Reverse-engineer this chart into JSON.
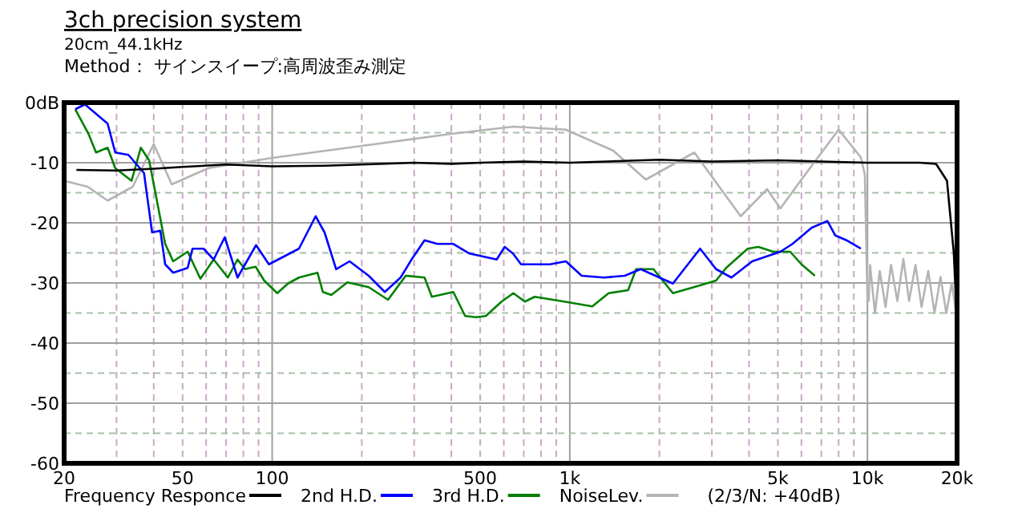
{
  "chart_data": {
    "type": "line",
    "title": "3ch precision system",
    "subtitle": "20cm_44.1kHz",
    "annotations": [
      "Method： サインスイープ:高周波歪み測定",
      "(2/3/N: +40dB)"
    ],
    "log": "x",
    "grid": true,
    "legend": "bottom",
    "marker": "none",
    "line_style": "solid",
    "xlim": [
      20,
      20000
    ],
    "ylim": [
      -60,
      0
    ],
    "xticks": [
      20,
      {
        "value": 30,
        "label": null
      },
      {
        "value": 40,
        "label": null
      },
      50,
      {
        "value": 60,
        "label": null
      },
      {
        "value": 70,
        "label": null
      },
      {
        "value": 80,
        "label": null
      },
      {
        "value": 90,
        "label": null
      },
      100,
      {
        "value": 200,
        "label": null
      },
      {
        "value": 300,
        "label": null
      },
      {
        "value": 400,
        "label": null
      },
      500,
      {
        "value": 600,
        "label": null
      },
      {
        "value": 700,
        "label": null
      },
      {
        "value": 800,
        "label": null
      },
      {
        "value": 900,
        "label": null
      },
      {
        "value": 1000,
        "label": "1k"
      },
      {
        "value": 2000,
        "label": null
      },
      {
        "value": 3000,
        "label": null
      },
      {
        "value": 4000,
        "label": null
      },
      {
        "value": 5000,
        "label": "5k"
      },
      {
        "value": 6000,
        "label": null
      },
      {
        "value": 7000,
        "label": null
      },
      {
        "value": 8000,
        "label": null
      },
      {
        "value": 9000,
        "label": null
      },
      {
        "value": 10000,
        "label": "10k"
      },
      {
        "value": 20000,
        "label": "20k"
      }
    ],
    "yticks": [
      -60,
      {
        "value": -55,
        "label": null
      },
      -50,
      {
        "value": -45,
        "label": null
      },
      -40,
      {
        "value": -35,
        "label": null
      },
      -30,
      {
        "value": -25,
        "label": null
      },
      -20,
      {
        "value": -15,
        "label": null
      },
      -10,
      {
        "value": -5,
        "label": null
      },
      {
        "value": 0,
        "label": "0dB"
      }
    ],
    "series": [
      {
        "name": "Frequency Responce",
        "color": "#000000",
        "x": [
          22,
          30,
          40,
          50,
          70,
          100,
          150,
          200,
          300,
          400,
          500,
          700,
          1000,
          2000,
          3000,
          5000,
          10000,
          15000,
          17000,
          18500,
          19500,
          20000
        ],
        "values": [
          -11.2,
          -11.3,
          -11.0,
          -10.7,
          -10.3,
          -10.6,
          -10.5,
          -10.3,
          -10.0,
          -10.2,
          -10.0,
          -9.8,
          -10.0,
          -9.5,
          -9.8,
          -9.6,
          -10.0,
          -10.0,
          -10.2,
          -13,
          -25,
          -37
        ]
      },
      {
        "name": "2nd H.D.",
        "color": "#0000ff",
        "x": [
          21.8,
          23.5,
          28,
          29.7,
          32.9,
          37.1,
          39.5,
          42.1,
          43.7,
          46.5,
          52,
          54,
          58.8,
          63.6,
          69.3,
          76.5,
          88.3,
          97.5,
          123,
          140,
          150,
          164,
          182,
          211,
          239,
          270,
          294,
          325,
          359,
          406,
          460,
          568,
          604,
          644,
          686,
          858,
          970,
          1096,
          1300,
          1530,
          1730,
          2000,
          2220,
          2740,
          3100,
          3490,
          4100,
          5100,
          5600,
          6500,
          7340,
          7800,
          8500,
          9500
        ],
        "values": [
          -1.1,
          -0.3,
          -3.5,
          -8.3,
          -8.7,
          -11.7,
          -21.6,
          -21.3,
          -26.9,
          -28.3,
          -27.5,
          -24.3,
          -24.3,
          -26.1,
          -22.4,
          -29.1,
          -23.7,
          -26.9,
          -24.3,
          -18.9,
          -21.6,
          -27.7,
          -26.4,
          -28.8,
          -31.5,
          -29.1,
          -26.1,
          -22.9,
          -23.5,
          -23.5,
          -25.1,
          -26.1,
          -24.0,
          -25.1,
          -26.9,
          -26.9,
          -26.4,
          -28.8,
          -29.1,
          -28.8,
          -27.7,
          -29.1,
          -30.1,
          -24.3,
          -27.7,
          -29.1,
          -26.4,
          -24.8,
          -23.5,
          -20.8,
          -19.7,
          -22.1,
          -22.9,
          -24.3
        ]
      },
      {
        "name": "3rd H.D.",
        "color": "#008000",
        "x": [
          21.8,
          24.1,
          25.6,
          28,
          29.7,
          33.7,
          36.2,
          38.6,
          41,
          43.7,
          46.5,
          52,
          57.4,
          63.6,
          71,
          76.5,
          81,
          88,
          94,
          104,
          113,
          123,
          142,
          148,
          158,
          179,
          211,
          245,
          281,
          325,
          344,
          406,
          445,
          484,
          522,
          590,
          646,
          706,
          762,
          958,
          1190,
          1350,
          1570,
          1670,
          1910,
          2220,
          2740,
          3100,
          3350,
          3960,
          4300,
          4820,
          5500,
          6000,
          6660
        ],
        "values": [
          -1.1,
          -5.1,
          -8.3,
          -7.5,
          -10.9,
          -13.0,
          -7.5,
          -9.6,
          -16.3,
          -23.5,
          -26.4,
          -24.8,
          -29.3,
          -26.1,
          -29.1,
          -26.1,
          -27.7,
          -27.3,
          -29.6,
          -31.7,
          -30.1,
          -29.1,
          -28.3,
          -31.5,
          -32.0,
          -29.9,
          -30.7,
          -32.8,
          -28.8,
          -29.1,
          -32.3,
          -31.5,
          -35.5,
          -35.7,
          -35.5,
          -33.1,
          -31.7,
          -33.1,
          -32.3,
          -33.1,
          -33.9,
          -31.7,
          -31.2,
          -27.7,
          -27.7,
          -31.7,
          -30.4,
          -29.6,
          -27.5,
          -24.3,
          -24.0,
          -24.8,
          -24.8,
          -26.9,
          -28.8
        ]
      },
      {
        "name": "NoiseLev.",
        "color": "#b4b4b4",
        "x": [
          20,
          24,
          28,
          34,
          40,
          46,
          61,
          100,
          200,
          400,
          646,
          970,
          1400,
          1800,
          2620,
          3750,
          4600,
          5100,
          6000,
          8000,
          9500,
          9800,
          10000,
          10100,
          10200,
          10600,
          11000,
          11500,
          12000,
          12600,
          13200,
          13800,
          14500,
          15200,
          16000,
          16800,
          17600,
          18400,
          19200,
          20000
        ],
        "values": [
          -13,
          -14,
          -16.3,
          -14,
          -6.9,
          -13.6,
          -10.9,
          -9.2,
          -7.2,
          -5.2,
          -4.0,
          -4.5,
          -8,
          -12.8,
          -8.3,
          -18.9,
          -14.4,
          -17.6,
          -12.8,
          -4.5,
          -9.1,
          -12,
          -33,
          -33,
          -27,
          -35,
          -28,
          -34,
          -27,
          -33,
          -26,
          -33,
          -27,
          -34,
          -28,
          -35,
          -29,
          -35,
          -30,
          -36
        ]
      }
    ]
  }
}
